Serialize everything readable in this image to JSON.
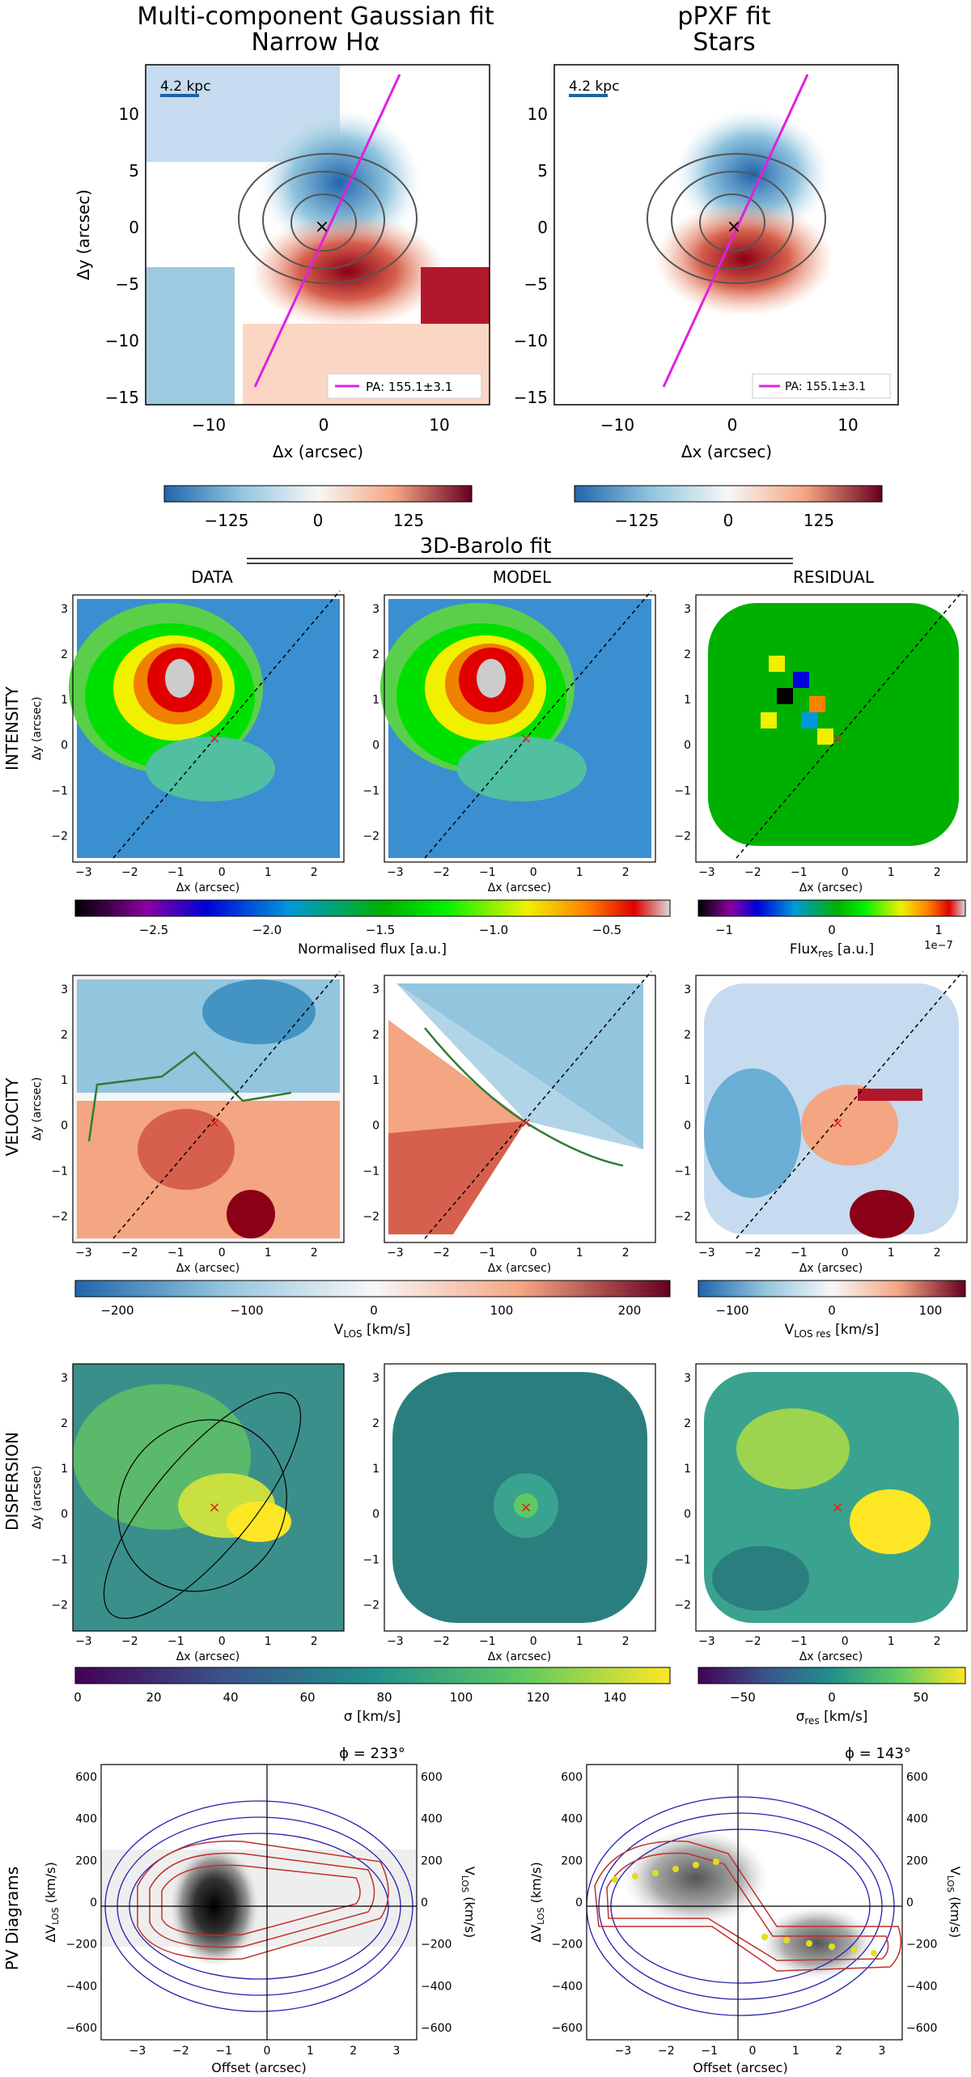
{
  "top": {
    "left_title_1": "Multi-component Gaussian fit",
    "left_title_2": "Narrow Hα",
    "right_title_1": "pPXF fit",
    "right_title_2": "Stars",
    "scale_label": "4.2 kpc",
    "pa_label": "PA: 155.1±3.1",
    "xlabel": "Δx (arcsec)",
    "ylabel": "Δy (arcsec)",
    "x_ticks": [
      "−10",
      "0",
      "10"
    ],
    "y_ticks": [
      "10",
      "5",
      "0",
      "−5",
      "−10",
      "−15"
    ],
    "cbar_ticks": [
      "−125",
      "0",
      "125"
    ]
  },
  "barolo": {
    "header": "3D-Barolo fit",
    "col_data": "DATA",
    "col_model": "MODEL",
    "col_residual": "RESIDUAL",
    "row_intensity": "INTENSITY",
    "row_velocity": "VELOCITY",
    "row_dispersion": "DISPERSION",
    "xlabel": "Δx (arcsec)",
    "ylabel": "Δy (arcsec)",
    "x_ticks": [
      "−3",
      "−2",
      "−1",
      "0",
      "1",
      "2"
    ],
    "y_ticks": [
      "3",
      "2",
      "1",
      "0",
      "−1",
      "−2"
    ],
    "int_cbar_ticks": [
      "−2.5",
      "−2.0",
      "−1.5",
      "−1.0",
      "−0.5"
    ],
    "int_cbar_label": "Normalised flux [a.u.]",
    "intres_cbar_ticks": [
      "−1",
      "0",
      "1"
    ],
    "intres_cbar_label": "Flux",
    "intres_cbar_sub": "res",
    "intres_cbar_unit": " [a.u.]",
    "intres_exp": "1e−7",
    "vel_cbar_ticks": [
      "−200",
      "−100",
      "0",
      "100",
      "200"
    ],
    "vel_cbar_label": "V",
    "vel_cbar_sub": "LOS",
    "vel_cbar_unit": " [km/s]",
    "velres_cbar_ticks": [
      "−100",
      "0",
      "100"
    ],
    "velres_cbar_sub": "LOS res",
    "disp_cbar_ticks": [
      "0",
      "20",
      "40",
      "60",
      "80",
      "100",
      "120",
      "140"
    ],
    "disp_cbar_label": "σ [km/s]",
    "dispres_cbar_ticks": [
      "−50",
      "0",
      "50"
    ],
    "dispres_cbar_label": "σ",
    "dispres_cbar_sub": "res",
    "dispres_cbar_unit": " [km/s]"
  },
  "pv": {
    "row_label": "PV Diagrams",
    "left_angle": "ϕ = 233°",
    "right_angle": "ϕ = 143°",
    "xlabel": "Offset (arcsec)",
    "ylabel_main": "ΔV",
    "ylabel_right": "V",
    "ylabel_sub": "LOS",
    "ylabel_unit": " (km/s)",
    "y_ticks": [
      "600",
      "400",
      "200",
      "0",
      "−200",
      "−400",
      "−600"
    ],
    "left_x_ticks": [
      "−3",
      "−2",
      "−1",
      "0",
      "1",
      "2",
      "3"
    ],
    "right_x_ticks": [
      "−3",
      "−2",
      "−1",
      "0",
      "1",
      "2",
      "3"
    ]
  },
  "colors": {
    "pa_line": "#e020e0",
    "scalebar": "#1f5fa8",
    "model_contour": "#c0302a",
    "data_contour": "#2020b0",
    "kinematic_curve": "#2e7d32",
    "center_marker": "#e02020",
    "rot_points": "#dede20"
  }
}
